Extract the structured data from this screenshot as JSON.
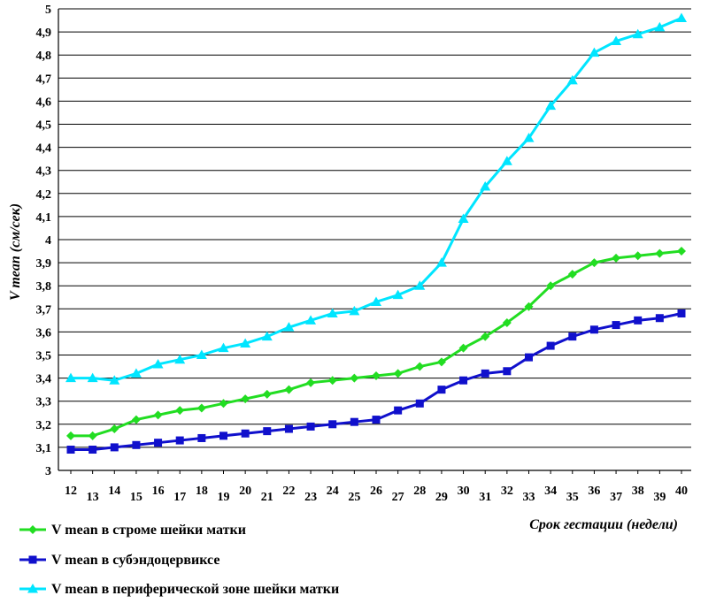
{
  "chart_data": {
    "type": "line",
    "title": "",
    "xlabel": "Срок гестации (недели)",
    "ylabel": "V mean (см/сек)",
    "ylim": [
      3,
      5
    ],
    "y_ticks": [
      "3",
      "3,1",
      "3,2",
      "3,3",
      "3,4",
      "3,5",
      "3,6",
      "3,7",
      "3,8",
      "3,9",
      "4",
      "4,1",
      "4,2",
      "4,3",
      "4,4",
      "4,5",
      "4,6",
      "4,7",
      "4,8",
      "4,9",
      "5"
    ],
    "grid": true,
    "legend_position": "bottom-left",
    "categories": [
      "12",
      "13",
      "14",
      "15",
      "16",
      "17",
      "18",
      "19",
      "20",
      "21",
      "22",
      "23",
      "24",
      "25",
      "26",
      "27",
      "28",
      "29",
      "30",
      "31",
      "32",
      "33",
      "34",
      "35",
      "36",
      "37",
      "38",
      "39",
      "40"
    ],
    "series": [
      {
        "name": "V mean в строме шейки матки",
        "color": "#22dd22",
        "marker": "diamond",
        "values": [
          3.15,
          3.15,
          3.18,
          3.22,
          3.24,
          3.26,
          3.27,
          3.29,
          3.31,
          3.33,
          3.35,
          3.38,
          3.39,
          3.4,
          3.41,
          3.42,
          3.45,
          3.47,
          3.53,
          3.58,
          3.64,
          3.71,
          3.8,
          3.85,
          3.9,
          3.92,
          3.93,
          3.94,
          3.95
        ]
      },
      {
        "name": "V mean в субэндоцервиксе",
        "color": "#1010cc",
        "marker": "square",
        "values": [
          3.09,
          3.09,
          3.1,
          3.11,
          3.12,
          3.13,
          3.14,
          3.15,
          3.16,
          3.17,
          3.18,
          3.19,
          3.2,
          3.21,
          3.22,
          3.26,
          3.29,
          3.35,
          3.39,
          3.42,
          3.43,
          3.49,
          3.54,
          3.58,
          3.61,
          3.63,
          3.65,
          3.66,
          3.68
        ]
      },
      {
        "name": "V mean в  периферической зоне шейки матки",
        "color": "#00e5ff",
        "marker": "triangle",
        "values": [
          3.4,
          3.4,
          3.39,
          3.42,
          3.46,
          3.48,
          3.5,
          3.53,
          3.55,
          3.58,
          3.62,
          3.65,
          3.68,
          3.69,
          3.73,
          3.76,
          3.8,
          3.9,
          4.09,
          4.23,
          4.34,
          4.44,
          4.58,
          4.69,
          4.81,
          4.86,
          4.89,
          4.92,
          4.96
        ]
      }
    ]
  }
}
